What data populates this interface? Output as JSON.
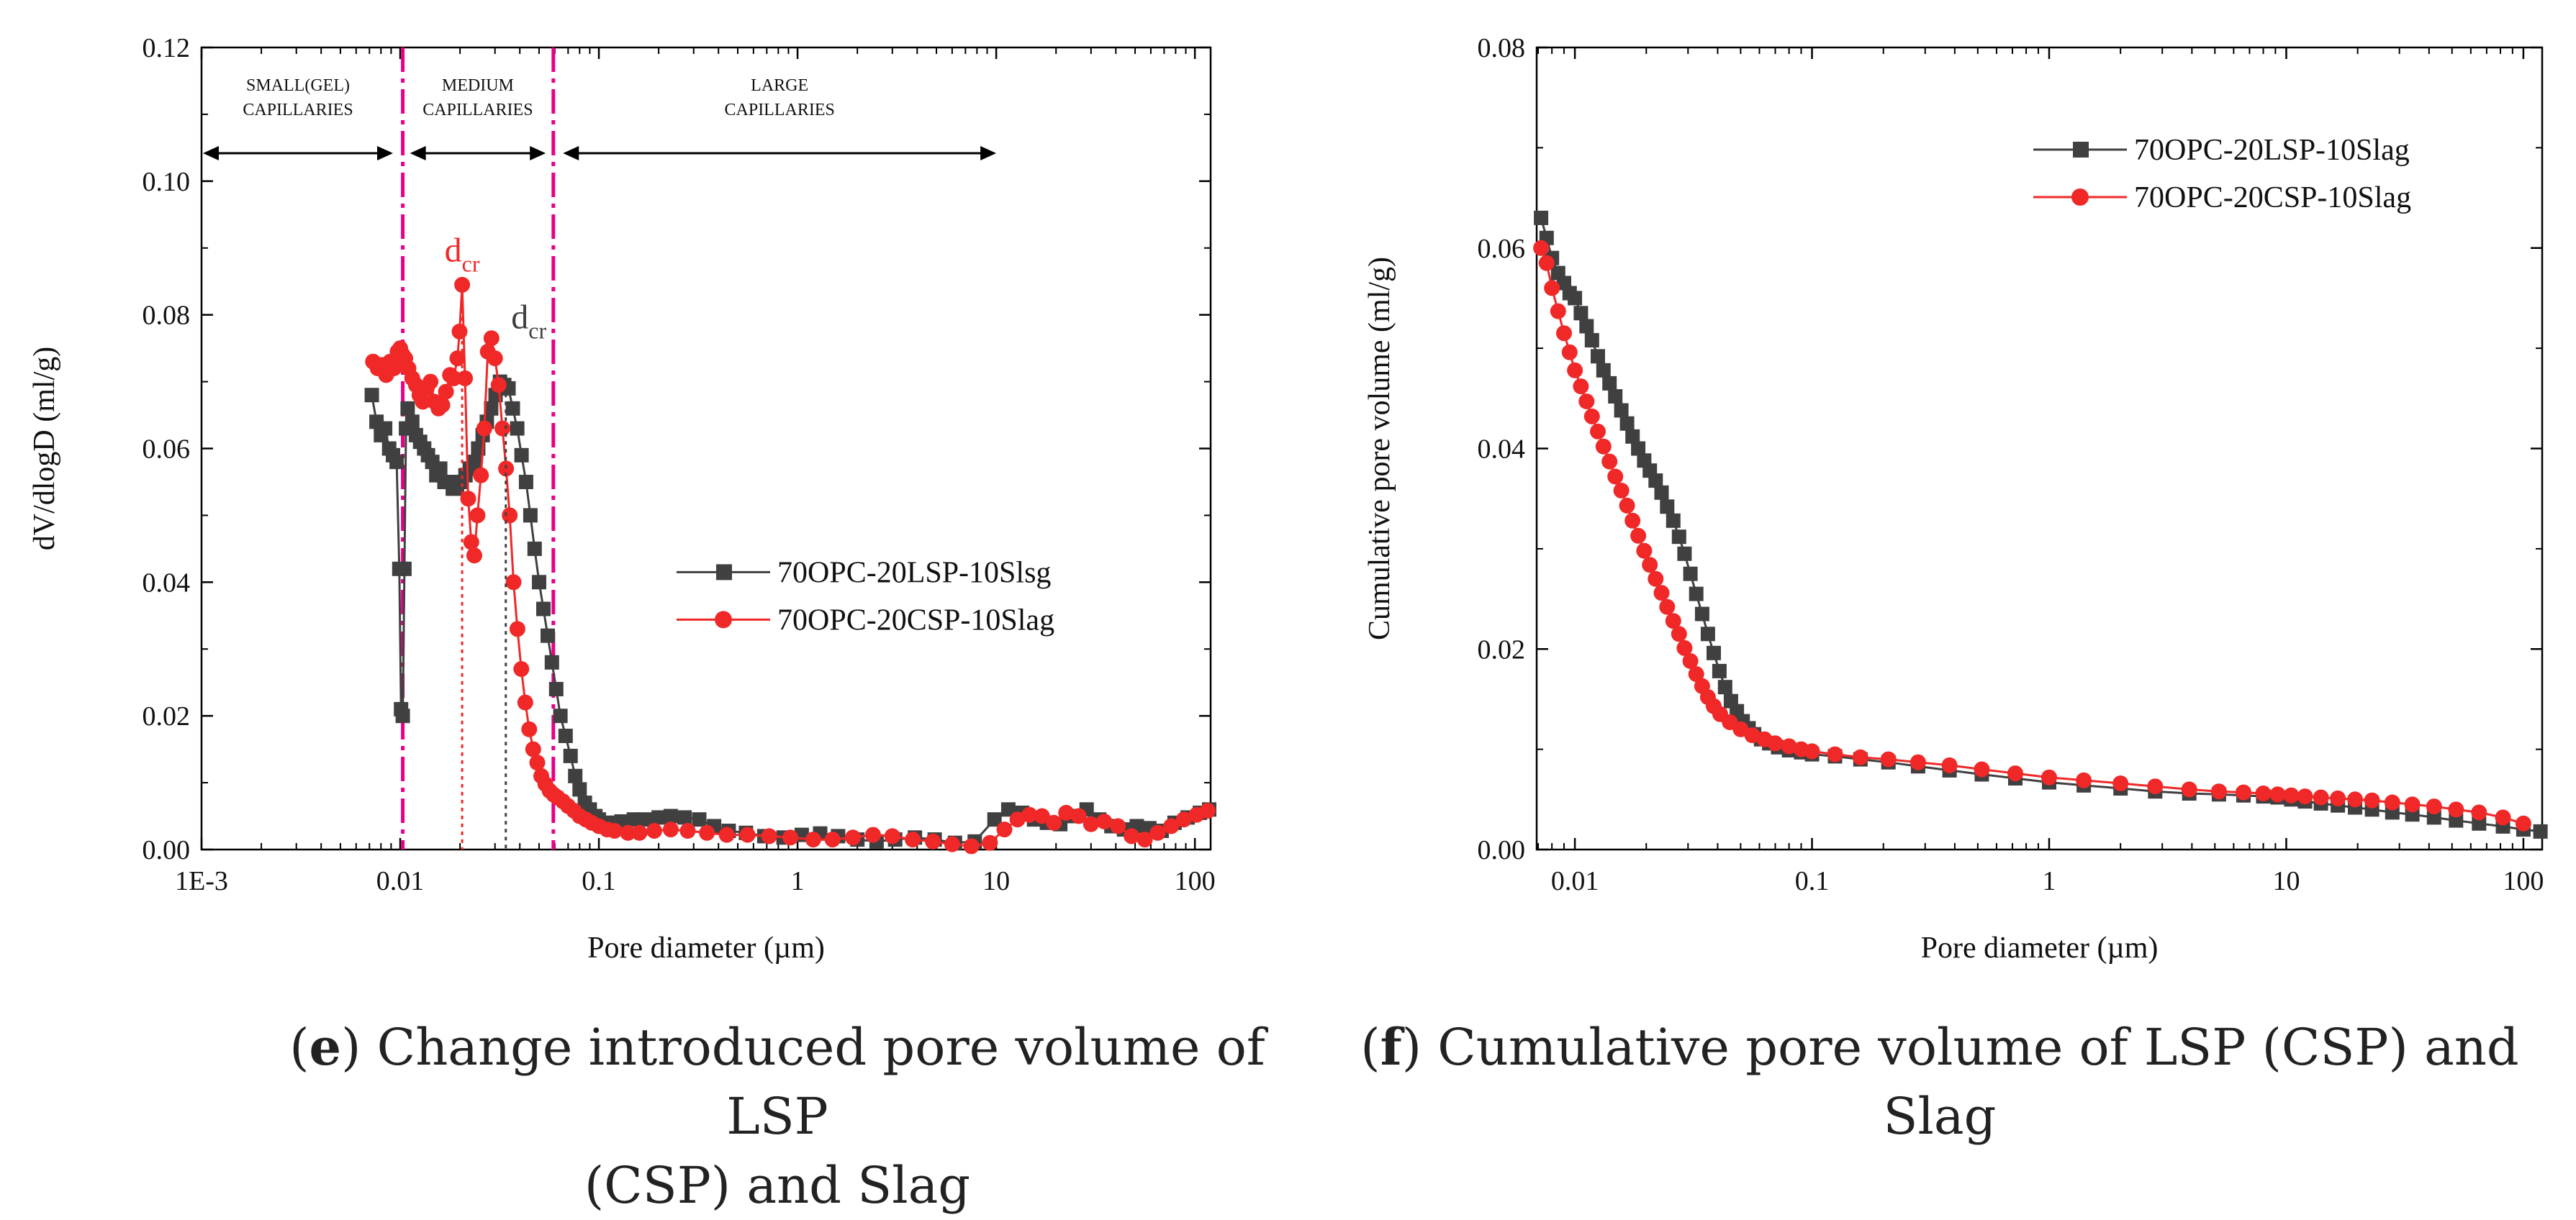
{
  "captions": {
    "e": {
      "letter": "e",
      "line1": "Change introduced pore volume of LSP",
      "line2": "(CSP) and Slag"
    },
    "f": {
      "letter": "f",
      "line1": "Cumulative pore volume of LSP (CSP) and",
      "line2": "Slag"
    }
  },
  "colors": {
    "series_a": "#404040",
    "series_b": "#f02828",
    "divider": "#e8008a"
  },
  "chart_data": [
    {
      "type": "line",
      "id": "e",
      "xlabel": "Pore diameter (µm)",
      "ylabel": "dV/dlogD (ml/g)",
      "xscale": "log",
      "xlim": [
        0.001,
        120
      ],
      "ylim": [
        0,
        0.12
      ],
      "xticks": [
        0.001,
        0.01,
        0.1,
        1,
        10,
        100
      ],
      "xtick_labels": [
        "1E-3",
        "0.01",
        "0.1",
        "1",
        "10",
        "100"
      ],
      "yticks": [
        0,
        0.02,
        0.04,
        0.06,
        0.08,
        0.1,
        0.12
      ],
      "ytick_labels": [
        "0.00",
        "0.02",
        "0.04",
        "0.06",
        "0.08",
        "0.10",
        "0.12"
      ],
      "legend_position": "center-right",
      "dividers": [
        0.0103,
        0.059
      ],
      "regions": [
        {
          "label_line1": "SMALL(GEL)",
          "label_line2": "CAPILLARIES",
          "arrow_from": 0.001,
          "arrow_to": 0.0092
        },
        {
          "label_line1": "MEDIUM",
          "label_line2": "CAPILLARIES",
          "arrow_from": 0.0112,
          "arrow_to": 0.054
        },
        {
          "label_line1": "LARGE",
          "label_line2": "CAPILLARIES",
          "arrow_from": 0.066,
          "arrow_to": 10
        }
      ],
      "annotations": [
        {
          "text": "d",
          "sub": "cr",
          "series": 1,
          "x": 0.0205,
          "y": 0.0845,
          "label_y": 0.088
        },
        {
          "text": "d",
          "sub": "cr",
          "series": 0,
          "x": 0.034,
          "y": 0.0695,
          "label_y": 0.078
        }
      ],
      "series": [
        {
          "name": "70OPC-20LSP-10Slsg",
          "marker": "square",
          "x": [
            0.0072,
            0.0076,
            0.008,
            0.0084,
            0.0088,
            0.0092,
            0.0096,
            0.0099,
            0.0101,
            0.0103,
            0.0105,
            0.0107,
            0.0109,
            0.0115,
            0.012,
            0.0126,
            0.0132,
            0.0138,
            0.0145,
            0.0152,
            0.0159,
            0.0167,
            0.0175,
            0.0184,
            0.0193,
            0.0203,
            0.0213,
            0.0224,
            0.0235,
            0.0247,
            0.026,
            0.0273,
            0.0287,
            0.0302,
            0.0318,
            0.0334,
            0.0351,
            0.0369,
            0.0388,
            0.0408,
            0.043,
            0.0452,
            0.0475,
            0.05,
            0.0526,
            0.0553,
            0.058,
            0.061,
            0.064,
            0.068,
            0.072,
            0.076,
            0.08,
            0.085,
            0.09,
            0.096,
            0.1,
            0.11,
            0.12,
            0.13,
            0.15,
            0.17,
            0.2,
            0.23,
            0.27,
            0.32,
            0.38,
            0.45,
            0.55,
            0.68,
            0.85,
            1.05,
            1.3,
            1.6,
            2.0,
            2.5,
            3.1,
            3.9,
            4.9,
            6.2,
            7.8,
            9.8,
            11.5,
            13.5,
            15.5,
            18,
            21,
            24.5,
            28.5,
            33,
            38,
            44,
            51,
            59,
            68,
            79,
            92,
            106,
            118
          ],
          "values": [
            0.068,
            0.064,
            0.062,
            0.063,
            0.06,
            0.059,
            0.058,
            0.042,
            0.021,
            0.02,
            0.042,
            0.063,
            0.066,
            0.064,
            0.062,
            0.061,
            0.06,
            0.059,
            0.058,
            0.056,
            0.057,
            0.055,
            0.055,
            0.054,
            0.054,
            0.055,
            0.056,
            0.057,
            0.058,
            0.06,
            0.062,
            0.064,
            0.066,
            0.068,
            0.07,
            0.0695,
            0.069,
            0.066,
            0.063,
            0.059,
            0.055,
            0.05,
            0.045,
            0.04,
            0.036,
            0.032,
            0.028,
            0.024,
            0.02,
            0.017,
            0.014,
            0.011,
            0.009,
            0.007,
            0.006,
            0.005,
            0.0045,
            0.004,
            0.004,
            0.0042,
            0.0045,
            0.0045,
            0.0048,
            0.005,
            0.0048,
            0.0045,
            0.0035,
            0.0028,
            0.0025,
            0.002,
            0.0018,
            0.0022,
            0.0024,
            0.002,
            0.0015,
            0.0012,
            0.0015,
            0.0018,
            0.0015,
            0.001,
            0.0012,
            0.0045,
            0.006,
            0.0055,
            0.0045,
            0.004,
            0.0038,
            0.005,
            0.006,
            0.0045,
            0.0035,
            0.003,
            0.0035,
            0.0032,
            0.0028,
            0.004,
            0.0048,
            0.0055,
            0.006
          ]
        },
        {
          "name": "70OPC-20CSP-10Slag",
          "marker": "circle",
          "x": [
            0.0073,
            0.0077,
            0.0081,
            0.0085,
            0.0089,
            0.0093,
            0.0097,
            0.01,
            0.0103,
            0.0106,
            0.011,
            0.0115,
            0.012,
            0.0125,
            0.013,
            0.0136,
            0.0142,
            0.0149,
            0.0156,
            0.0163,
            0.017,
            0.0178,
            0.0186,
            0.0194,
            0.0199,
            0.0205,
            0.0212,
            0.022,
            0.0228,
            0.0236,
            0.0245,
            0.0255,
            0.0265,
            0.0276,
            0.0288,
            0.03,
            0.0313,
            0.0327,
            0.0341,
            0.0356,
            0.0372,
            0.0389,
            0.0407,
            0.0426,
            0.0446,
            0.0467,
            0.049,
            0.0513,
            0.0538,
            0.0565,
            0.0593,
            0.062,
            0.066,
            0.07,
            0.075,
            0.08,
            0.086,
            0.092,
            0.1,
            0.11,
            0.12,
            0.14,
            0.16,
            0.19,
            0.23,
            0.28,
            0.35,
            0.44,
            0.56,
            0.72,
            0.92,
            1.2,
            1.5,
            1.9,
            2.4,
            3.0,
            3.8,
            4.8,
            6.0,
            7.5,
            9.3,
            11,
            12.8,
            14.7,
            17,
            19.5,
            22.5,
            26,
            30,
            35,
            41,
            48,
            56,
            65,
            76,
            88,
            102,
            116
          ],
          "values": [
            0.073,
            0.072,
            0.0725,
            0.071,
            0.073,
            0.072,
            0.0745,
            0.075,
            0.074,
            0.0735,
            0.072,
            0.0705,
            0.0695,
            0.068,
            0.067,
            0.069,
            0.07,
            0.067,
            0.066,
            0.0665,
            0.0685,
            0.071,
            0.0705,
            0.0735,
            0.0775,
            0.0845,
            0.0705,
            0.0525,
            0.046,
            0.044,
            0.05,
            0.056,
            0.063,
            0.0745,
            0.0765,
            0.0735,
            0.0695,
            0.063,
            0.057,
            0.05,
            0.04,
            0.033,
            0.027,
            0.022,
            0.018,
            0.015,
            0.013,
            0.011,
            0.0098,
            0.0088,
            0.0082,
            0.0078,
            0.0072,
            0.0065,
            0.0058,
            0.005,
            0.0045,
            0.004,
            0.0035,
            0.003,
            0.0028,
            0.0025,
            0.0025,
            0.0028,
            0.003,
            0.0028,
            0.0025,
            0.0022,
            0.0022,
            0.002,
            0.0018,
            0.0015,
            0.0015,
            0.0018,
            0.0022,
            0.002,
            0.0015,
            0.0012,
            0.0008,
            0.0005,
            0.001,
            0.003,
            0.0045,
            0.0052,
            0.005,
            0.004,
            0.0055,
            0.005,
            0.0038,
            0.0042,
            0.0035,
            0.002,
            0.0015,
            0.0025,
            0.0035,
            0.0045,
            0.0052,
            0.0058
          ]
        }
      ]
    },
    {
      "type": "line",
      "id": "f",
      "xlabel": "Pore diameter (µm)",
      "ylabel": "Cumulative pore volume (ml/g)",
      "xscale": "log",
      "xlim": [
        0.0069,
        120
      ],
      "ylim": [
        0,
        0.08
      ],
      "xticks": [
        0.01,
        0.1,
        1,
        10,
        100
      ],
      "xtick_labels": [
        "0.01",
        "0.1",
        "1",
        "10",
        "100"
      ],
      "yticks": [
        0,
        0.02,
        0.04,
        0.06,
        0.08
      ],
      "ytick_labels": [
        "0.00",
        "0.02",
        "0.04",
        "0.06",
        "0.08"
      ],
      "legend_position": "top-right",
      "series": [
        {
          "name": "70OPC-20LSP-10Slag",
          "marker": "square",
          "x": [
            0.0072,
            0.0076,
            0.008,
            0.0085,
            0.009,
            0.0095,
            0.01,
            0.0106,
            0.0112,
            0.0118,
            0.0125,
            0.0132,
            0.014,
            0.0148,
            0.0157,
            0.0166,
            0.0175,
            0.0185,
            0.0196,
            0.0207,
            0.0219,
            0.0232,
            0.0245,
            0.026,
            0.0275,
            0.029,
            0.0307,
            0.0325,
            0.0344,
            0.0364,
            0.0385,
            0.0407,
            0.043,
            0.0455,
            0.0482,
            0.051,
            0.054,
            0.057,
            0.061,
            0.066,
            0.072,
            0.08,
            0.09,
            0.1,
            0.125,
            0.16,
            0.21,
            0.28,
            0.38,
            0.52,
            0.72,
            1.0,
            1.4,
            2.0,
            2.8,
            3.9,
            5.2,
            6.6,
            8.0,
            9.2,
            10.5,
            12,
            14,
            16.5,
            19.5,
            23,
            28,
            34,
            42,
            52,
            65,
            82,
            100,
            118
          ],
          "values": [
            0.063,
            0.061,
            0.059,
            0.0575,
            0.0565,
            0.0555,
            0.055,
            0.0535,
            0.0522,
            0.0508,
            0.0492,
            0.0478,
            0.0465,
            0.0452,
            0.0438,
            0.0425,
            0.0412,
            0.04,
            0.0388,
            0.0378,
            0.0368,
            0.0356,
            0.0342,
            0.0328,
            0.0312,
            0.0295,
            0.0275,
            0.0255,
            0.0235,
            0.0215,
            0.0196,
            0.0178,
            0.0162,
            0.0148,
            0.0138,
            0.0128,
            0.0121,
            0.0115,
            0.011,
            0.0106,
            0.0102,
            0.0099,
            0.0097,
            0.0095,
            0.0093,
            0.009,
            0.0087,
            0.0083,
            0.0079,
            0.0075,
            0.0071,
            0.0067,
            0.0064,
            0.0061,
            0.0058,
            0.0056,
            0.0055,
            0.0054,
            0.0053,
            0.0052,
            0.005,
            0.0048,
            0.0046,
            0.0044,
            0.0042,
            0.004,
            0.0037,
            0.0035,
            0.0032,
            0.0029,
            0.0026,
            0.0023,
            0.002,
            0.0018
          ]
        },
        {
          "name": "70OPC-20CSP-10Slag",
          "marker": "circle",
          "x": [
            0.0072,
            0.0076,
            0.008,
            0.0085,
            0.009,
            0.0095,
            0.01,
            0.0106,
            0.0112,
            0.0118,
            0.0125,
            0.0132,
            0.014,
            0.0148,
            0.0157,
            0.0166,
            0.0175,
            0.0185,
            0.0196,
            0.0207,
            0.0219,
            0.0232,
            0.0245,
            0.026,
            0.0275,
            0.029,
            0.0307,
            0.0325,
            0.0344,
            0.0364,
            0.0385,
            0.041,
            0.045,
            0.05,
            0.056,
            0.063,
            0.07,
            0.08,
            0.09,
            0.1,
            0.125,
            0.16,
            0.21,
            0.28,
            0.38,
            0.52,
            0.72,
            1.0,
            1.4,
            2.0,
            2.8,
            3.9,
            5.2,
            6.6,
            8.0,
            9.2,
            10.5,
            12,
            14,
            16.5,
            19.5,
            23,
            28,
            34,
            42,
            52,
            65,
            82,
            100
          ],
          "values": [
            0.06,
            0.0585,
            0.056,
            0.0537,
            0.0515,
            0.0496,
            0.0478,
            0.0462,
            0.0447,
            0.0432,
            0.0417,
            0.0402,
            0.0387,
            0.0372,
            0.0358,
            0.0343,
            0.0328,
            0.0313,
            0.0298,
            0.0284,
            0.027,
            0.0256,
            0.0242,
            0.0228,
            0.0215,
            0.0201,
            0.0188,
            0.0175,
            0.0163,
            0.0152,
            0.0143,
            0.0135,
            0.0127,
            0.012,
            0.0114,
            0.011,
            0.0106,
            0.0103,
            0.01,
            0.0098,
            0.0095,
            0.0092,
            0.009,
            0.0087,
            0.0084,
            0.008,
            0.0076,
            0.0072,
            0.0069,
            0.0066,
            0.0063,
            0.006,
            0.0058,
            0.0057,
            0.0056,
            0.0055,
            0.0054,
            0.0053,
            0.0052,
            0.0051,
            0.005,
            0.0049,
            0.0047,
            0.0045,
            0.0043,
            0.004,
            0.0037,
            0.0032,
            0.0026
          ]
        }
      ]
    }
  ]
}
